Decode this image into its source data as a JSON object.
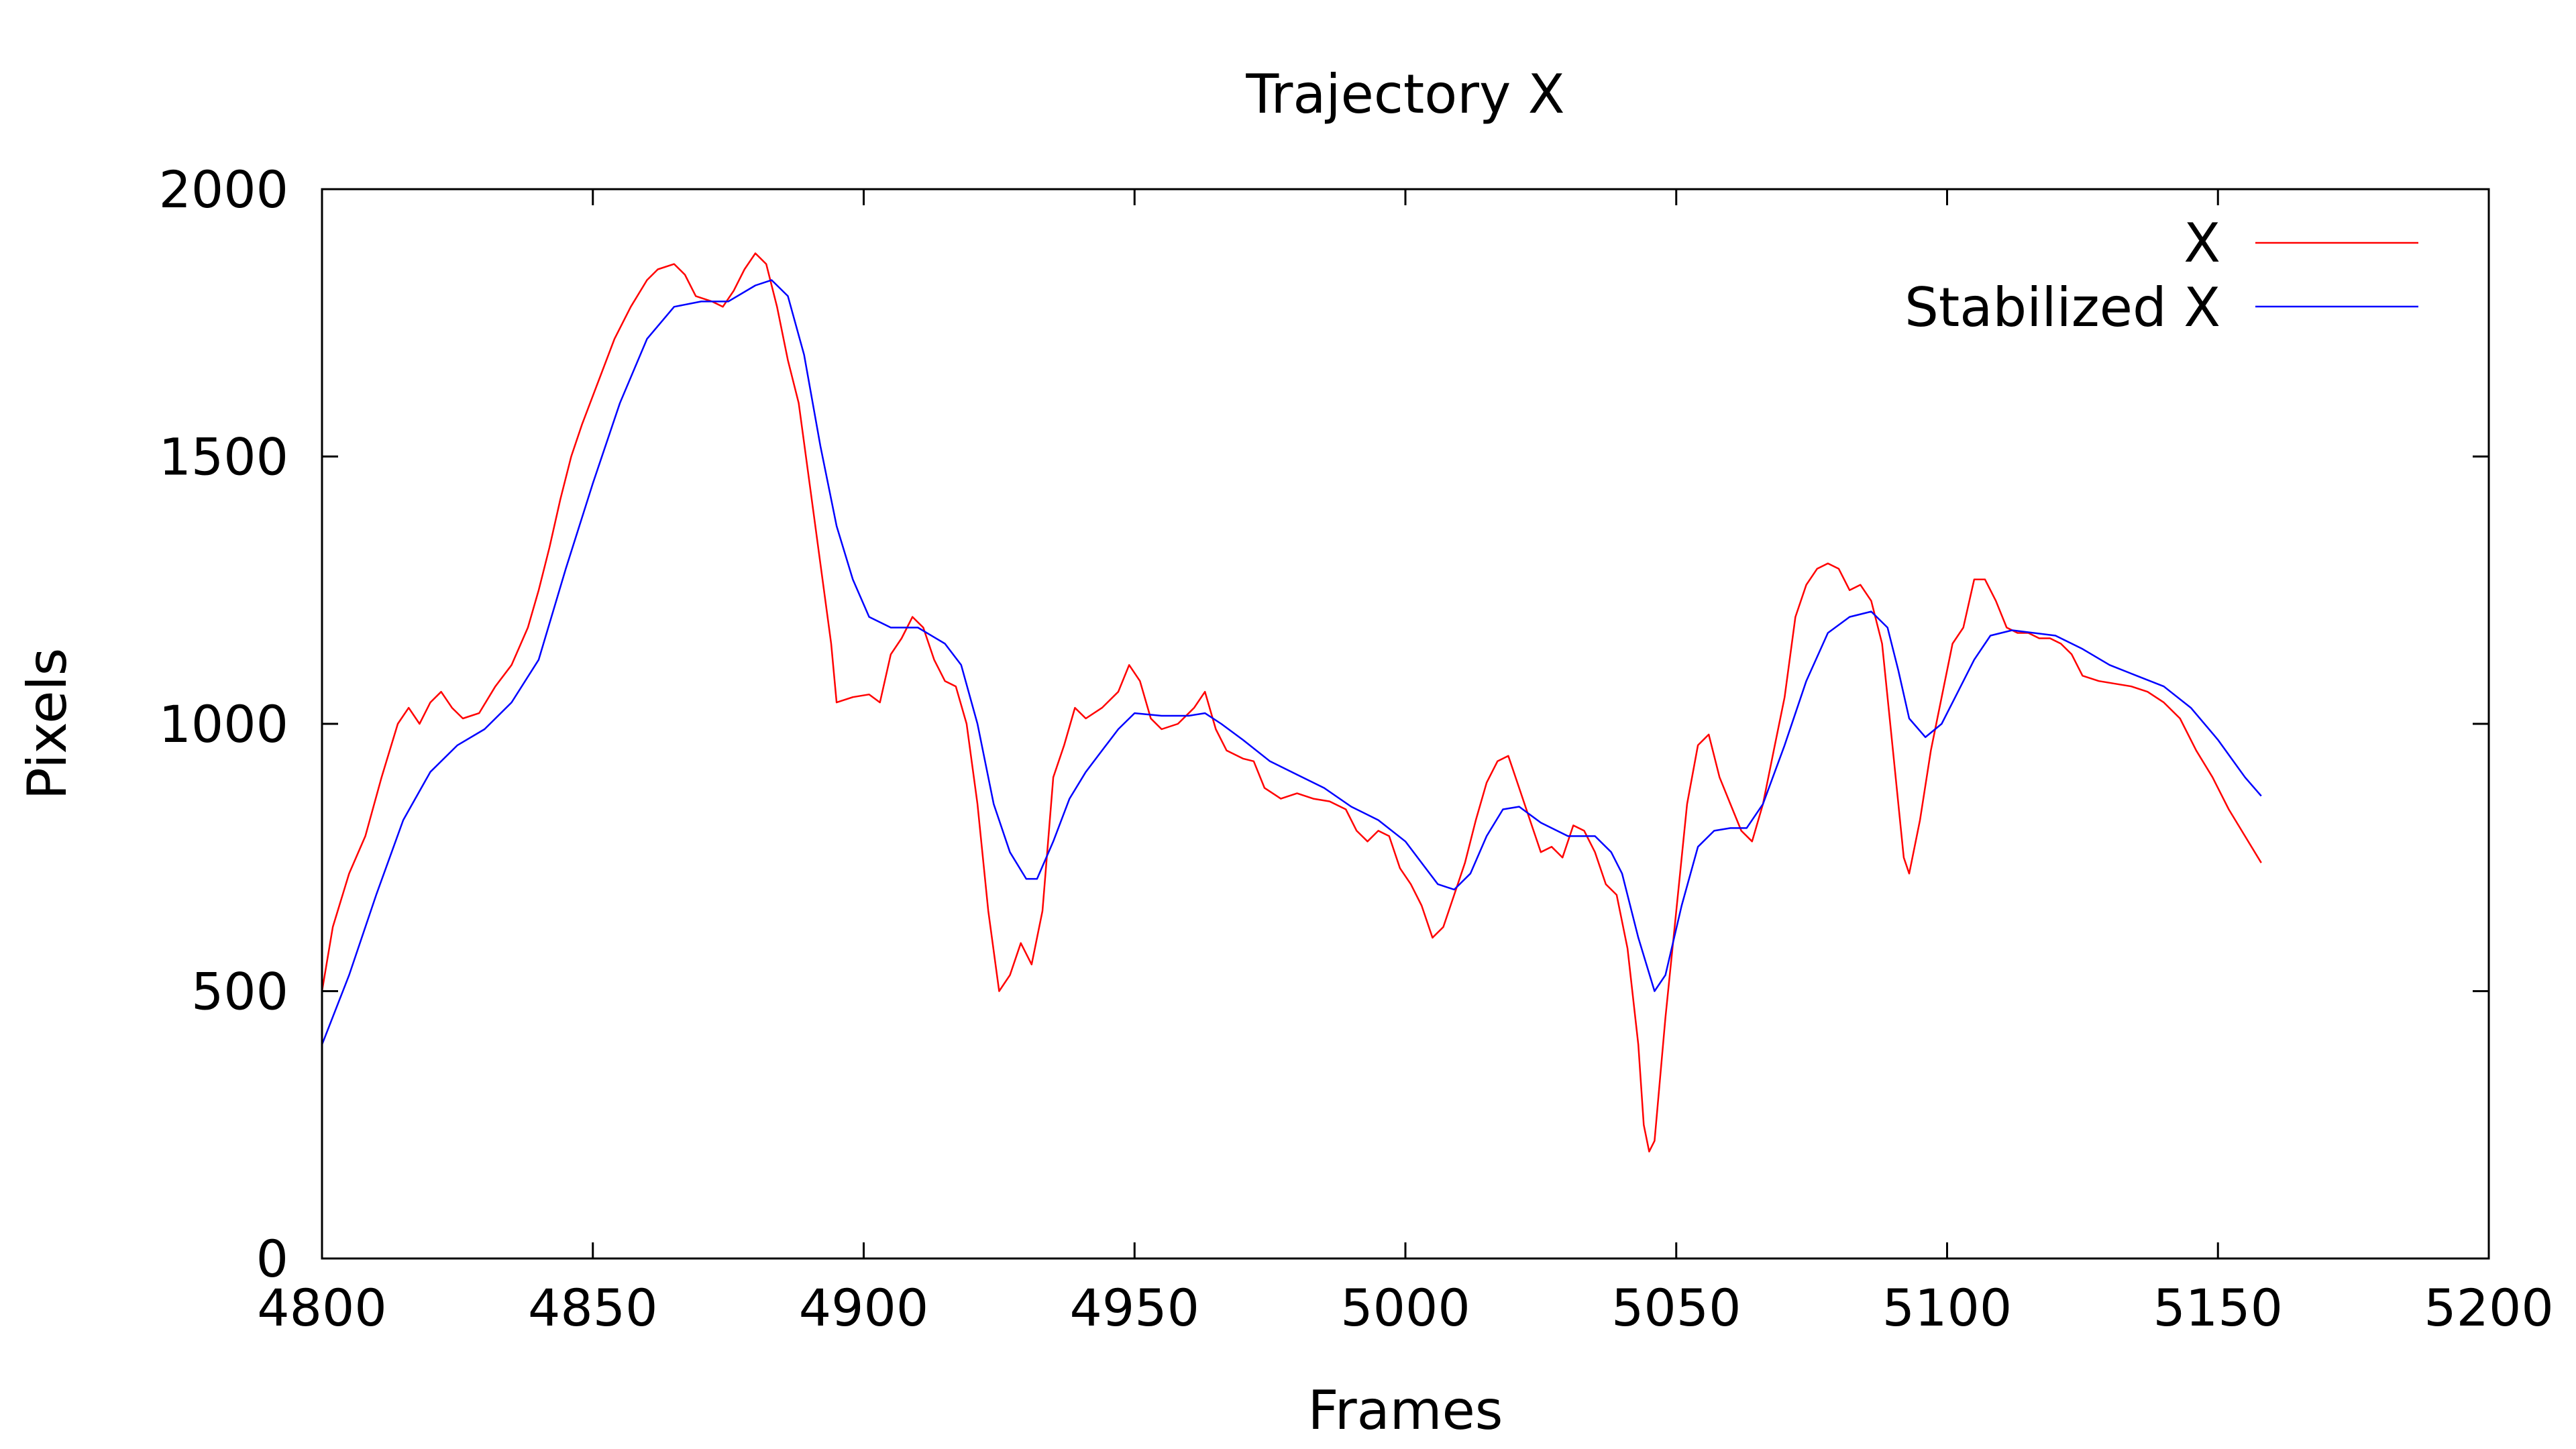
{
  "chart_data": {
    "type": "line",
    "title": "Trajectory X",
    "xlabel": "Frames",
    "ylabel": "Pixels",
    "xlim": [
      4800,
      5200
    ],
    "ylim": [
      0,
      2000
    ],
    "xticks": [
      4800,
      4850,
      4900,
      4950,
      5000,
      5050,
      5100,
      5150,
      5200
    ],
    "yticks": [
      0,
      500,
      1000,
      1500,
      2000
    ],
    "xtick_labels": [
      "4800",
      "4850",
      "4900",
      "4950",
      "5000",
      "5050",
      "5100",
      "5150",
      "5200"
    ],
    "ytick_labels": [
      "0",
      "500",
      "1000",
      "1500",
      "2000"
    ],
    "grid": false,
    "legend_position": "top-right",
    "series": [
      {
        "name": "X",
        "color": "#ff0000",
        "points": [
          [
            4800,
            500
          ],
          [
            4802,
            620
          ],
          [
            4805,
            720
          ],
          [
            4808,
            790
          ],
          [
            4811,
            900
          ],
          [
            4814,
            1000
          ],
          [
            4816,
            1030
          ],
          [
            4818,
            1000
          ],
          [
            4820,
            1040
          ],
          [
            4822,
            1060
          ],
          [
            4824,
            1030
          ],
          [
            4826,
            1010
          ],
          [
            4829,
            1020
          ],
          [
            4832,
            1070
          ],
          [
            4835,
            1110
          ],
          [
            4838,
            1180
          ],
          [
            4840,
            1250
          ],
          [
            4842,
            1330
          ],
          [
            4844,
            1420
          ],
          [
            4846,
            1500
          ],
          [
            4848,
            1560
          ],
          [
            4851,
            1640
          ],
          [
            4854,
            1720
          ],
          [
            4857,
            1780
          ],
          [
            4860,
            1830
          ],
          [
            4862,
            1850
          ],
          [
            4865,
            1860
          ],
          [
            4867,
            1840
          ],
          [
            4869,
            1800
          ],
          [
            4872,
            1790
          ],
          [
            4874,
            1780
          ],
          [
            4876,
            1810
          ],
          [
            4878,
            1850
          ],
          [
            4880,
            1880
          ],
          [
            4882,
            1860
          ],
          [
            4884,
            1780
          ],
          [
            4886,
            1680
          ],
          [
            4888,
            1600
          ],
          [
            4890,
            1450
          ],
          [
            4892,
            1300
          ],
          [
            4894,
            1150
          ],
          [
            4895,
            1040
          ],
          [
            4898,
            1050
          ],
          [
            4901,
            1055
          ],
          [
            4903,
            1040
          ],
          [
            4905,
            1130
          ],
          [
            4907,
            1160
          ],
          [
            4909,
            1200
          ],
          [
            4911,
            1180
          ],
          [
            4913,
            1120
          ],
          [
            4915,
            1080
          ],
          [
            4917,
            1070
          ],
          [
            4919,
            1000
          ],
          [
            4921,
            850
          ],
          [
            4923,
            650
          ],
          [
            4925,
            500
          ],
          [
            4927,
            530
          ],
          [
            4929,
            590
          ],
          [
            4931,
            550
          ],
          [
            4933,
            650
          ],
          [
            4935,
            900
          ],
          [
            4937,
            960
          ],
          [
            4939,
            1030
          ],
          [
            4941,
            1010
          ],
          [
            4944,
            1030
          ],
          [
            4947,
            1060
          ],
          [
            4949,
            1110
          ],
          [
            4951,
            1080
          ],
          [
            4953,
            1010
          ],
          [
            4955,
            990
          ],
          [
            4958,
            1000
          ],
          [
            4961,
            1030
          ],
          [
            4963,
            1060
          ],
          [
            4965,
            990
          ],
          [
            4967,
            950
          ],
          [
            4970,
            935
          ],
          [
            4972,
            930
          ],
          [
            4974,
            880
          ],
          [
            4977,
            860
          ],
          [
            4980,
            870
          ],
          [
            4983,
            860
          ],
          [
            4986,
            855
          ],
          [
            4989,
            840
          ],
          [
            4991,
            800
          ],
          [
            4993,
            780
          ],
          [
            4995,
            800
          ],
          [
            4997,
            790
          ],
          [
            4999,
            730
          ],
          [
            5001,
            700
          ],
          [
            5003,
            660
          ],
          [
            5005,
            600
          ],
          [
            5007,
            620
          ],
          [
            5009,
            680
          ],
          [
            5011,
            740
          ],
          [
            5013,
            820
          ],
          [
            5015,
            890
          ],
          [
            5017,
            930
          ],
          [
            5019,
            940
          ],
          [
            5021,
            880
          ],
          [
            5023,
            820
          ],
          [
            5025,
            760
          ],
          [
            5027,
            770
          ],
          [
            5029,
            750
          ],
          [
            5031,
            810
          ],
          [
            5033,
            800
          ],
          [
            5035,
            760
          ],
          [
            5037,
            700
          ],
          [
            5039,
            680
          ],
          [
            5041,
            580
          ],
          [
            5043,
            400
          ],
          [
            5044,
            250
          ],
          [
            5045,
            200
          ],
          [
            5046,
            220
          ],
          [
            5048,
            450
          ],
          [
            5050,
            650
          ],
          [
            5052,
            850
          ],
          [
            5054,
            960
          ],
          [
            5056,
            980
          ],
          [
            5058,
            900
          ],
          [
            5060,
            850
          ],
          [
            5062,
            800
          ],
          [
            5064,
            780
          ],
          [
            5066,
            850
          ],
          [
            5068,
            950
          ],
          [
            5070,
            1050
          ],
          [
            5072,
            1200
          ],
          [
            5074,
            1260
          ],
          [
            5076,
            1290
          ],
          [
            5078,
            1300
          ],
          [
            5080,
            1290
          ],
          [
            5082,
            1250
          ],
          [
            5084,
            1260
          ],
          [
            5086,
            1230
          ],
          [
            5088,
            1150
          ],
          [
            5090,
            950
          ],
          [
            5092,
            750
          ],
          [
            5093,
            720
          ],
          [
            5095,
            820
          ],
          [
            5097,
            950
          ],
          [
            5099,
            1050
          ],
          [
            5101,
            1150
          ],
          [
            5103,
            1180
          ],
          [
            5105,
            1270
          ],
          [
            5107,
            1270
          ],
          [
            5109,
            1230
          ],
          [
            5111,
            1180
          ],
          [
            5113,
            1170
          ],
          [
            5115,
            1170
          ],
          [
            5117,
            1160
          ],
          [
            5119,
            1160
          ],
          [
            5121,
            1150
          ],
          [
            5123,
            1130
          ],
          [
            5125,
            1090
          ],
          [
            5128,
            1080
          ],
          [
            5131,
            1075
          ],
          [
            5134,
            1070
          ],
          [
            5137,
            1060
          ],
          [
            5140,
            1040
          ],
          [
            5143,
            1010
          ],
          [
            5146,
            950
          ],
          [
            5149,
            900
          ],
          [
            5152,
            840
          ],
          [
            5155,
            790
          ],
          [
            5158,
            740
          ]
        ]
      },
      {
        "name": "Stabilized X",
        "color": "#0000ff",
        "points": [
          [
            4800,
            400
          ],
          [
            4805,
            530
          ],
          [
            4810,
            680
          ],
          [
            4815,
            820
          ],
          [
            4820,
            910
          ],
          [
            4825,
            960
          ],
          [
            4830,
            990
          ],
          [
            4835,
            1040
          ],
          [
            4840,
            1120
          ],
          [
            4845,
            1290
          ],
          [
            4850,
            1450
          ],
          [
            4855,
            1600
          ],
          [
            4860,
            1720
          ],
          [
            4865,
            1780
          ],
          [
            4870,
            1790
          ],
          [
            4875,
            1790
          ],
          [
            4880,
            1820
          ],
          [
            4883,
            1830
          ],
          [
            4886,
            1800
          ],
          [
            4889,
            1690
          ],
          [
            4892,
            1520
          ],
          [
            4895,
            1370
          ],
          [
            4898,
            1270
          ],
          [
            4901,
            1200
          ],
          [
            4905,
            1180
          ],
          [
            4910,
            1180
          ],
          [
            4915,
            1150
          ],
          [
            4918,
            1110
          ],
          [
            4921,
            1000
          ],
          [
            4924,
            850
          ],
          [
            4927,
            760
          ],
          [
            4930,
            710
          ],
          [
            4932,
            710
          ],
          [
            4935,
            780
          ],
          [
            4938,
            860
          ],
          [
            4941,
            910
          ],
          [
            4944,
            950
          ],
          [
            4947,
            990
          ],
          [
            4950,
            1020
          ],
          [
            4955,
            1015
          ],
          [
            4960,
            1015
          ],
          [
            4963,
            1020
          ],
          [
            4966,
            1000
          ],
          [
            4970,
            970
          ],
          [
            4975,
            930
          ],
          [
            4980,
            905
          ],
          [
            4985,
            880
          ],
          [
            4990,
            845
          ],
          [
            4995,
            820
          ],
          [
            5000,
            780
          ],
          [
            5003,
            740
          ],
          [
            5006,
            700
          ],
          [
            5009,
            690
          ],
          [
            5012,
            720
          ],
          [
            5015,
            790
          ],
          [
            5018,
            840
          ],
          [
            5021,
            845
          ],
          [
            5025,
            815
          ],
          [
            5030,
            790
          ],
          [
            5035,
            790
          ],
          [
            5038,
            760
          ],
          [
            5040,
            720
          ],
          [
            5043,
            600
          ],
          [
            5046,
            500
          ],
          [
            5048,
            530
          ],
          [
            5051,
            660
          ],
          [
            5054,
            770
          ],
          [
            5057,
            800
          ],
          [
            5060,
            805
          ],
          [
            5063,
            805
          ],
          [
            5066,
            850
          ],
          [
            5070,
            960
          ],
          [
            5074,
            1080
          ],
          [
            5078,
            1170
          ],
          [
            5082,
            1200
          ],
          [
            5086,
            1210
          ],
          [
            5089,
            1180
          ],
          [
            5091,
            1100
          ],
          [
            5093,
            1010
          ],
          [
            5096,
            975
          ],
          [
            5099,
            1000
          ],
          [
            5102,
            1060
          ],
          [
            5105,
            1120
          ],
          [
            5108,
            1165
          ],
          [
            5112,
            1175
          ],
          [
            5120,
            1165
          ],
          [
            5125,
            1140
          ],
          [
            5130,
            1110
          ],
          [
            5135,
            1090
          ],
          [
            5140,
            1070
          ],
          [
            5145,
            1030
          ],
          [
            5150,
            970
          ],
          [
            5155,
            900
          ],
          [
            5158,
            865
          ]
        ]
      }
    ]
  }
}
